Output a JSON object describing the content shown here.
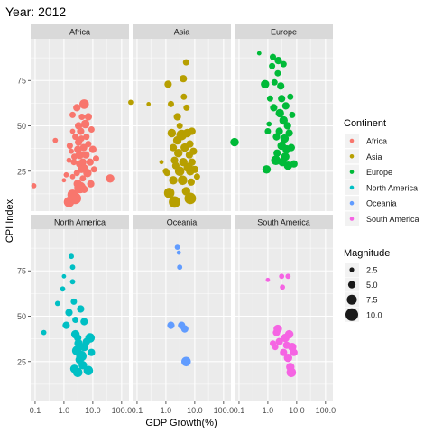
{
  "chart_data": {
    "type": "scatter",
    "title": "Year: 2012",
    "xlabel": "GDP Growth(%)",
    "ylabel": "CPI Index",
    "x_scale": "log10",
    "xlim": [
      0.07,
      180
    ],
    "ylim": [
      3,
      98
    ],
    "x_ticks": [
      0.1,
      1.0,
      10.0,
      100.0
    ],
    "x_tick_labels": [
      "0.1",
      "1.0",
      "10.0",
      "100.0"
    ],
    "y_ticks": [
      25,
      50,
      75
    ],
    "y_tick_labels": [
      "25",
      "50",
      "75"
    ],
    "grid": true,
    "panel_background": "#ebebeb",
    "strip_background": "#d9d9d9",
    "facets": [
      {
        "name": "Africa",
        "color": "#F8766D",
        "points": [
          [
            0.09,
            17,
            3
          ],
          [
            0.5,
            42,
            3
          ],
          [
            1.0,
            20,
            2
          ],
          [
            1.2,
            23,
            3
          ],
          [
            1.5,
            8,
            8
          ],
          [
            1.5,
            31,
            3
          ],
          [
            1.6,
            39,
            4
          ],
          [
            1.8,
            36,
            3
          ],
          [
            2.0,
            12,
            8
          ],
          [
            2.0,
            22,
            3
          ],
          [
            2.0,
            47,
            3
          ],
          [
            2.0,
            56,
            4
          ],
          [
            2.2,
            30,
            4
          ],
          [
            2.3,
            33,
            4
          ],
          [
            2.5,
            10,
            9
          ],
          [
            2.5,
            44,
            4
          ],
          [
            2.8,
            60,
            5
          ],
          [
            2.8,
            24,
            4
          ],
          [
            3.0,
            37,
            5
          ],
          [
            3.0,
            18,
            6
          ],
          [
            3.2,
            50,
            5
          ],
          [
            3.2,
            41,
            5
          ],
          [
            3.5,
            29,
            5
          ],
          [
            3.5,
            34,
            6
          ],
          [
            3.6,
            16,
            9
          ],
          [
            3.8,
            47,
            5
          ],
          [
            4.0,
            26,
            5
          ],
          [
            4.0,
            43,
            4
          ],
          [
            4.2,
            55,
            4
          ],
          [
            4.5,
            30,
            5
          ],
          [
            4.5,
            21,
            4
          ],
          [
            4.8,
            38,
            5
          ],
          [
            5.0,
            62,
            7
          ],
          [
            5.0,
            15,
            5
          ],
          [
            5.2,
            27,
            4
          ],
          [
            5.5,
            51,
            6
          ],
          [
            5.8,
            34,
            5
          ],
          [
            6.0,
            44,
            4
          ],
          [
            6.5,
            24,
            6
          ],
          [
            7.0,
            40,
            4
          ],
          [
            7.0,
            55,
            5
          ],
          [
            8.0,
            30,
            5
          ],
          [
            8.5,
            18,
            5
          ],
          [
            9.0,
            48,
            4
          ],
          [
            10.0,
            37,
            5
          ],
          [
            11.0,
            26,
            4
          ],
          [
            13.0,
            32,
            4
          ],
          [
            40.0,
            21,
            6
          ]
        ]
      },
      {
        "name": "Asia",
        "color": "#B79F00",
        "points": [
          [
            0.06,
            63,
            3
          ],
          [
            0.25,
            62,
            2
          ],
          [
            0.7,
            30,
            2
          ],
          [
            1.0,
            25,
            4
          ],
          [
            1.1,
            24,
            4
          ],
          [
            1.2,
            73,
            5
          ],
          [
            1.3,
            13,
            8
          ],
          [
            1.5,
            62,
            4
          ],
          [
            1.6,
            46,
            6
          ],
          [
            1.8,
            38,
            5
          ],
          [
            1.8,
            20,
            6
          ],
          [
            2.0,
            31,
            5
          ],
          [
            2.0,
            8,
            9
          ],
          [
            2.2,
            28,
            5
          ],
          [
            2.5,
            42,
            6
          ],
          [
            2.5,
            55,
            5
          ],
          [
            2.7,
            35,
            6
          ],
          [
            3.0,
            25,
            7
          ],
          [
            3.0,
            50,
            4
          ],
          [
            3.5,
            45,
            8
          ],
          [
            3.8,
            20,
            7
          ],
          [
            4.0,
            76,
            5
          ],
          [
            4.0,
            30,
            6
          ],
          [
            4.2,
            66,
            4
          ],
          [
            4.5,
            38,
            6
          ],
          [
            5.0,
            14,
            6
          ],
          [
            5.0,
            85,
            4
          ],
          [
            5.2,
            60,
            4
          ],
          [
            5.5,
            46,
            6
          ],
          [
            6.0,
            27,
            7
          ],
          [
            6.5,
            34,
            5
          ],
          [
            6.8,
            40,
            5
          ],
          [
            7.0,
            25,
            6
          ],
          [
            7.0,
            10,
            9
          ],
          [
            7.5,
            19,
            5
          ],
          [
            8.0,
            47,
            5
          ],
          [
            8.0,
            30,
            5
          ],
          [
            9.0,
            36,
            5
          ],
          [
            10.0,
            26,
            5
          ],
          [
            12.0,
            22,
            4
          ]
        ]
      },
      {
        "name": "Europe",
        "color": "#00BA38",
        "points": [
          [
            0.07,
            41,
            6
          ],
          [
            0.5,
            90,
            2
          ],
          [
            0.8,
            73,
            6
          ],
          [
            0.9,
            26,
            6
          ],
          [
            1.0,
            47,
            4
          ],
          [
            1.1,
            51,
            3
          ],
          [
            1.2,
            65,
            4
          ],
          [
            1.4,
            83,
            4
          ],
          [
            1.5,
            88,
            4
          ],
          [
            1.6,
            60,
            5
          ],
          [
            1.7,
            74,
            4
          ],
          [
            1.9,
            31,
            7
          ],
          [
            2.0,
            44,
            5
          ],
          [
            2.1,
            35,
            5
          ],
          [
            2.2,
            79,
            4
          ],
          [
            2.3,
            86,
            5
          ],
          [
            2.5,
            47,
            5
          ],
          [
            2.6,
            57,
            6
          ],
          [
            2.8,
            72,
            5
          ],
          [
            3.0,
            39,
            6
          ],
          [
            3.0,
            65,
            5
          ],
          [
            3.2,
            30,
            6
          ],
          [
            3.5,
            84,
            4
          ],
          [
            3.5,
            53,
            6
          ],
          [
            3.8,
            43,
            6
          ],
          [
            4.0,
            33,
            6
          ],
          [
            4.2,
            61,
            5
          ],
          [
            4.5,
            37,
            6
          ],
          [
            4.8,
            50,
            5
          ],
          [
            5.0,
            28,
            6
          ],
          [
            5.5,
            46,
            5
          ],
          [
            6.0,
            66,
            4
          ],
          [
            6.5,
            38,
            5
          ],
          [
            7.0,
            56,
            4
          ],
          [
            8.0,
            29,
            5
          ]
        ]
      },
      {
        "name": "North America",
        "color": "#00BFC4",
        "points": [
          [
            0.2,
            41,
            3
          ],
          [
            0.6,
            57,
            3
          ],
          [
            0.9,
            65,
            3
          ],
          [
            1.0,
            72,
            2
          ],
          [
            1.2,
            45,
            5
          ],
          [
            1.5,
            52,
            5
          ],
          [
            1.8,
            83,
            3
          ],
          [
            2.0,
            69,
            3
          ],
          [
            2.0,
            77,
            3
          ],
          [
            2.2,
            58,
            4
          ],
          [
            2.3,
            21,
            6
          ],
          [
            2.5,
            40,
            6
          ],
          [
            2.5,
            48,
            4
          ],
          [
            2.8,
            31,
            7
          ],
          [
            3.0,
            38,
            5
          ],
          [
            3.0,
            19,
            7
          ],
          [
            3.2,
            35,
            6
          ],
          [
            3.5,
            26,
            6
          ],
          [
            3.8,
            54,
            5
          ],
          [
            4.0,
            28,
            8
          ],
          [
            4.5,
            23,
            6
          ],
          [
            5.0,
            33,
            6
          ],
          [
            5.0,
            47,
            5
          ],
          [
            6.0,
            36,
            5
          ],
          [
            7.0,
            20,
            7
          ],
          [
            8.0,
            38,
            7
          ],
          [
            9.0,
            30,
            5
          ]
        ]
      },
      {
        "name": "Oceania",
        "color": "#619CFF",
        "points": [
          [
            1.5,
            45,
            5
          ],
          [
            2.5,
            88,
            3
          ],
          [
            2.8,
            85,
            2
          ],
          [
            3.0,
            77,
            3
          ],
          [
            3.5,
            45,
            5
          ],
          [
            4.5,
            43,
            5
          ],
          [
            5.0,
            25,
            7
          ]
        ]
      },
      {
        "name": "South America",
        "color": "#F564E3",
        "points": [
          [
            1.0,
            70,
            2
          ],
          [
            1.5,
            35,
            4
          ],
          [
            1.8,
            33,
            4
          ],
          [
            2.0,
            41,
            5
          ],
          [
            2.2,
            43,
            6
          ],
          [
            2.5,
            36,
            5
          ],
          [
            3.0,
            72,
            3
          ],
          [
            3.2,
            66,
            3
          ],
          [
            3.5,
            30,
            5
          ],
          [
            4.0,
            38,
            6
          ],
          [
            4.5,
            34,
            5
          ],
          [
            5.0,
            72,
            3
          ],
          [
            5.0,
            27,
            6
          ],
          [
            5.5,
            40,
            6
          ],
          [
            6.0,
            22,
            6
          ],
          [
            6.5,
            19,
            7
          ],
          [
            7.0,
            33,
            6
          ],
          [
            8.0,
            30,
            5
          ]
        ]
      }
    ],
    "legend": {
      "placement": "right",
      "continent_title": "Continent",
      "continents": [
        "Africa",
        "Asia",
        "Europe",
        "North America",
        "Oceania",
        "South America"
      ],
      "magnitude_title": "Magnitude",
      "magnitudes": [
        2.5,
        5.0,
        7.5,
        10.0
      ],
      "magnitude_labels": [
        "2.5",
        "5.0",
        "7.5",
        "10.0"
      ]
    }
  }
}
